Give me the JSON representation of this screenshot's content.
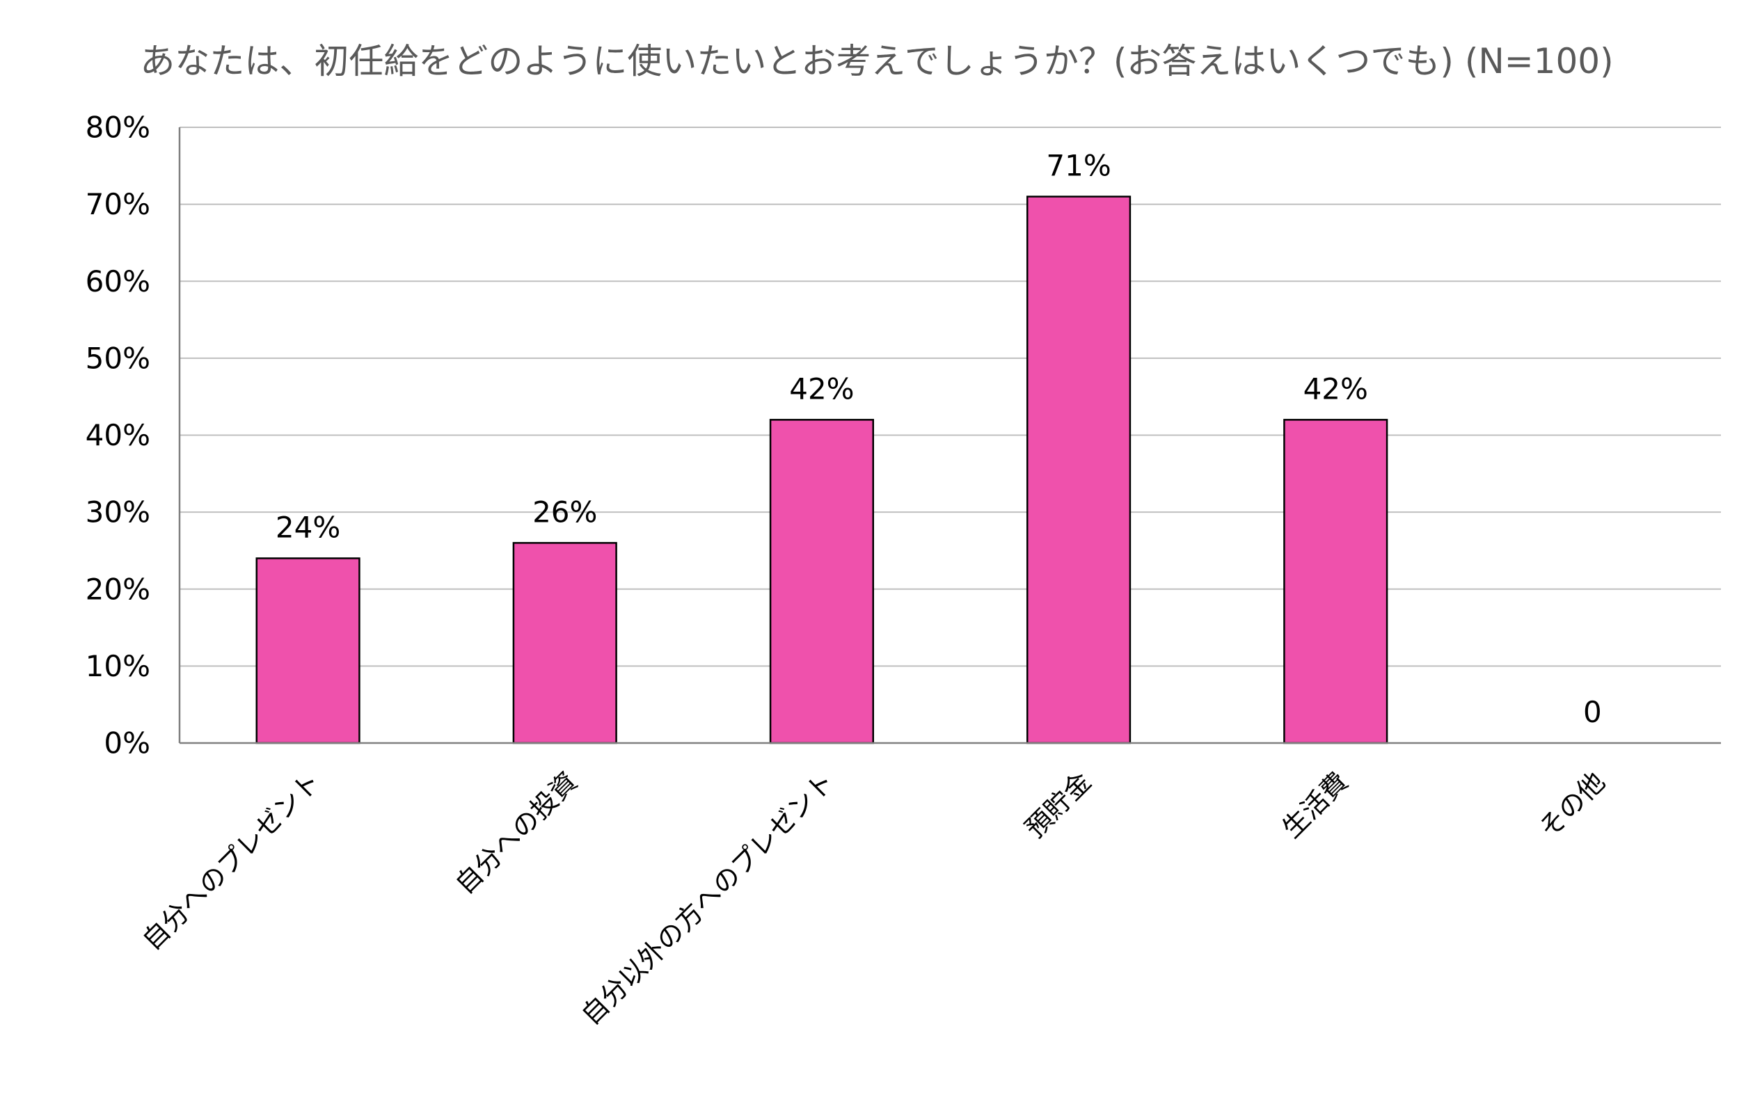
{
  "chart_data": {
    "type": "bar",
    "title": "あなたは、初任給をどのように使いたいとお考えでしょうか？(お答えはいくつでも)  (N=100)",
    "xlabel": "",
    "ylabel": "",
    "ylim": [
      0,
      80
    ],
    "yticks": [
      "0%",
      "10%",
      "20%",
      "30%",
      "40%",
      "50%",
      "60%",
      "70%",
      "80%"
    ],
    "categories": [
      "自分へのプレゼント",
      "自分への投資",
      "自分以外の方へのプレゼント",
      "預貯金",
      "生活費",
      "その他"
    ],
    "values": [
      24,
      26,
      42,
      71,
      42,
      0
    ],
    "data_labels": [
      "24%",
      "26%",
      "42%",
      "71%",
      "42%",
      "0"
    ],
    "grid": true,
    "legend": "none",
    "colors": {
      "bar_fill": "#EF51AC",
      "bar_stroke": "#000000",
      "grid": "#BFBFBF",
      "axis": "#808080",
      "text": "#000000",
      "title": "#595959"
    }
  }
}
